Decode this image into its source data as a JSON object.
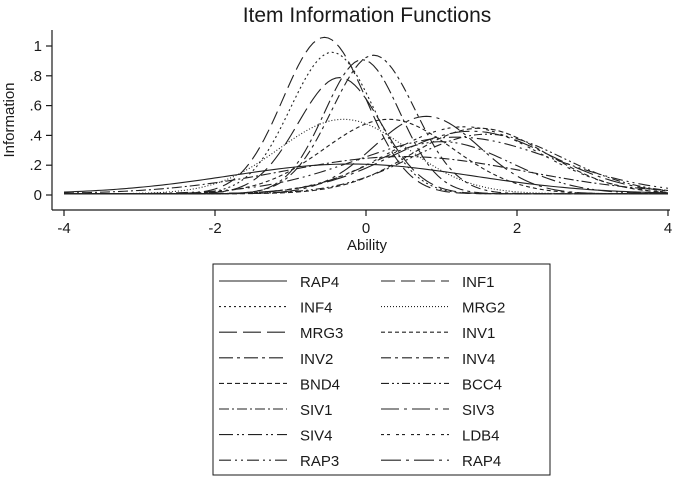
{
  "chart_data": {
    "type": "line",
    "title": "Item Information Functions",
    "xlabel": "Ability",
    "ylabel": "Information",
    "xlim": [
      -4,
      4
    ],
    "ylim": [
      0,
      1.05
    ],
    "x_ticks": [
      -4,
      -2,
      0,
      2,
      4
    ],
    "x_tick_labels": [
      "-4",
      "-2",
      "0",
      "2",
      "4"
    ],
    "y_ticks": [
      0,
      0.2,
      0.4,
      0.6,
      0.8,
      1
    ],
    "y_tick_labels": [
      "0",
      ".2",
      ".4",
      ".6",
      ".8",
      "1"
    ],
    "grid": false,
    "legend_position": "bottom",
    "line_color": "#222222",
    "series": [
      {
        "name": "RAP4",
        "dash": "",
        "curve": {
          "peak": 0.2,
          "mu": -0.2,
          "sigma": 1.6
        }
      },
      {
        "name": "INF1",
        "dash": "14 6",
        "curve": {
          "peak": 1.05,
          "mu": -0.55,
          "sigma": 0.55
        }
      },
      {
        "name": "INF4",
        "dash": "2 3",
        "curve": {
          "peak": 0.95,
          "mu": -0.45,
          "sigma": 0.55
        }
      },
      {
        "name": "MRG2",
        "dash": "1 2",
        "curve": {
          "peak": 0.5,
          "mu": -0.3,
          "sigma": 0.85
        }
      },
      {
        "name": "MRG3",
        "dash": "18 6",
        "curve": {
          "peak": 0.78,
          "mu": -0.35,
          "sigma": 0.55
        }
      },
      {
        "name": "INV1",
        "dash": "4 3",
        "curve": {
          "peak": 0.5,
          "mu": 0.3,
          "sigma": 0.85
        }
      },
      {
        "name": "INV2",
        "dash": "14 4 3 4",
        "curve": {
          "peak": 0.9,
          "mu": -0.05,
          "sigma": 0.5
        }
      },
      {
        "name": "INV4",
        "dash": "10 4 3 4",
        "curve": {
          "peak": 0.93,
          "mu": 0.1,
          "sigma": 0.55
        }
      },
      {
        "name": "BND4",
        "dash": "5 3",
        "curve": {
          "peak": 0.44,
          "mu": 1.5,
          "sigma": 0.9
        }
      },
      {
        "name": "BCC4",
        "dash": "8 3 2 3 2 3",
        "curve": {
          "peak": 0.4,
          "mu": 1.6,
          "sigma": 1.0
        }
      },
      {
        "name": "SIV1",
        "dash": "10 3 2 3",
        "curve": {
          "peak": 0.25,
          "mu": 0.5,
          "sigma": 1.6
        }
      },
      {
        "name": "SIV3",
        "dash": "18 5 3 5",
        "curve": {
          "peak": 0.52,
          "mu": 0.8,
          "sigma": 0.7
        }
      },
      {
        "name": "SIV4",
        "dash": "14 4 2 3 2 4",
        "curve": {
          "peak": 0.35,
          "mu": 1.0,
          "sigma": 0.9
        }
      },
      {
        "name": "LDB4",
        "dash": "3 3 3 6",
        "curve": {
          "peak": 0.45,
          "mu": 1.3,
          "sigma": 1.0
        }
      },
      {
        "name": "RAP3",
        "dash": "12 4 2 4 2 4",
        "curve": {
          "peak": 0.38,
          "mu": 1.2,
          "sigma": 1.3
        }
      },
      {
        "name": "RAP4",
        "dash": "20 5 3 5",
        "curve": {
          "peak": 0.42,
          "mu": 1.4,
          "sigma": 1.05
        }
      }
    ]
  }
}
